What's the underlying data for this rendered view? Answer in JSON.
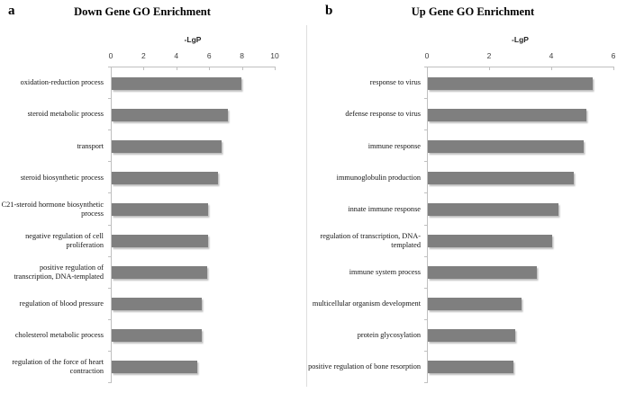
{
  "chart_data": [
    {
      "type": "bar",
      "orientation": "horizontal",
      "panel_letter": "a",
      "title": "Down Gene GO Enrichment",
      "xlabel": "-LgP",
      "xlim": [
        0,
        10
      ],
      "xticks": [
        0,
        2,
        4,
        6,
        8,
        10
      ],
      "grid": false,
      "legend": "none",
      "bar_color": "#7f7f7f",
      "categories": [
        "oxidation-reduction process",
        "steroid metabolic process",
        "transport",
        "steroid biosynthetic process",
        "C21-steroid hormone biosynthetic process",
        "negative regulation of cell proliferation",
        "positive regulation of transcription, DNA-templated",
        "regulation of blood pressure",
        "cholesterol metabolic process",
        "regulation of the force of heart contraction"
      ],
      "values": [
        7.9,
        7.1,
        6.7,
        6.5,
        5.9,
        5.9,
        5.8,
        5.5,
        5.5,
        5.2
      ]
    },
    {
      "type": "bar",
      "orientation": "horizontal",
      "panel_letter": "b",
      "title": "Up Gene GO Enrichment",
      "xlabel": "-LgP",
      "xlim": [
        0,
        6
      ],
      "xticks": [
        0,
        2,
        4,
        6
      ],
      "grid": false,
      "legend": "none",
      "bar_color": "#7f7f7f",
      "categories": [
        "response to virus",
        "defense response to virus",
        "immune response",
        "immunoglobulin production",
        "innate immune response",
        "regulation of transcription, DNA-templated",
        "immune system process",
        "multicellular organism development",
        "protein glycosylation",
        "positive regulation of bone resorption"
      ],
      "values": [
        5.3,
        5.1,
        5.0,
        4.7,
        4.2,
        4.0,
        3.5,
        3.0,
        2.8,
        2.75
      ]
    }
  ]
}
